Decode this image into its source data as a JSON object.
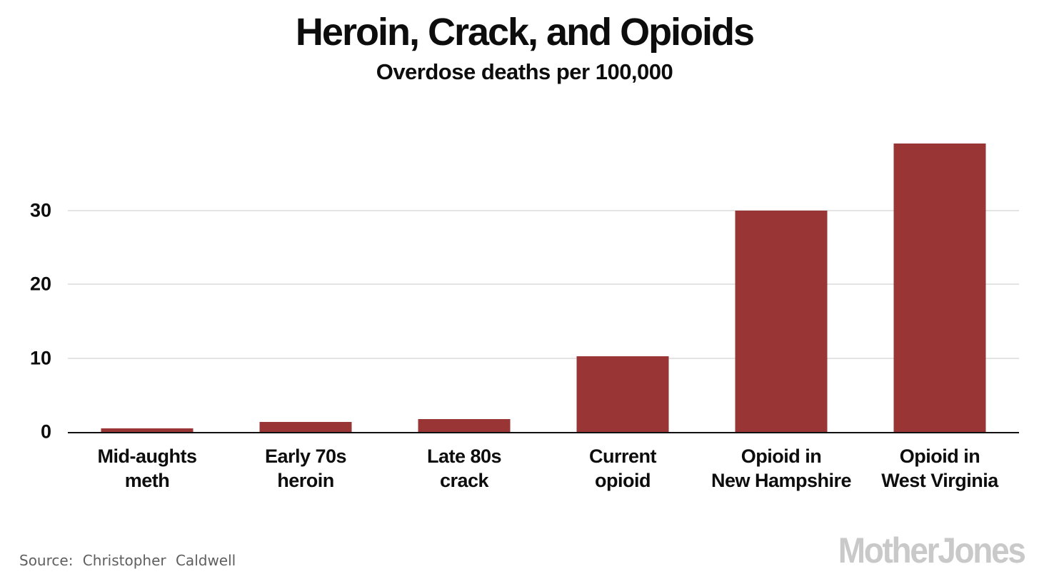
{
  "chart_data": {
    "type": "bar",
    "title": "Heroin, Crack, and Opioids",
    "subtitle": "Overdose deaths per 100,000",
    "categories": [
      {
        "line1": "Mid-aughts",
        "line2": "meth"
      },
      {
        "line1": "Early 70s",
        "line2": "heroin"
      },
      {
        "line1": "Late 80s",
        "line2": "crack"
      },
      {
        "line1": "Current",
        "line2": "opioid"
      },
      {
        "line1": "Opioid in",
        "line2": "New Hampshire"
      },
      {
        "line1": "Opioid in",
        "line2": "West Virginia"
      }
    ],
    "values": [
      0.5,
      1.4,
      1.7,
      10.2,
      30,
      39
    ],
    "yticks": [
      0,
      10,
      20,
      30
    ],
    "ylim": [
      0,
      43
    ],
    "xlabel": "",
    "ylabel": "",
    "grid": true,
    "legend": "none",
    "bar_color": "#993534",
    "gridline_color": "#e4e4e4",
    "axis_color": "#111111",
    "text_color": "#0d0d0d"
  },
  "footer": {
    "source_label": "Source:",
    "source_value": "Christopher Caldwell",
    "logo_text": "MotherJones"
  }
}
